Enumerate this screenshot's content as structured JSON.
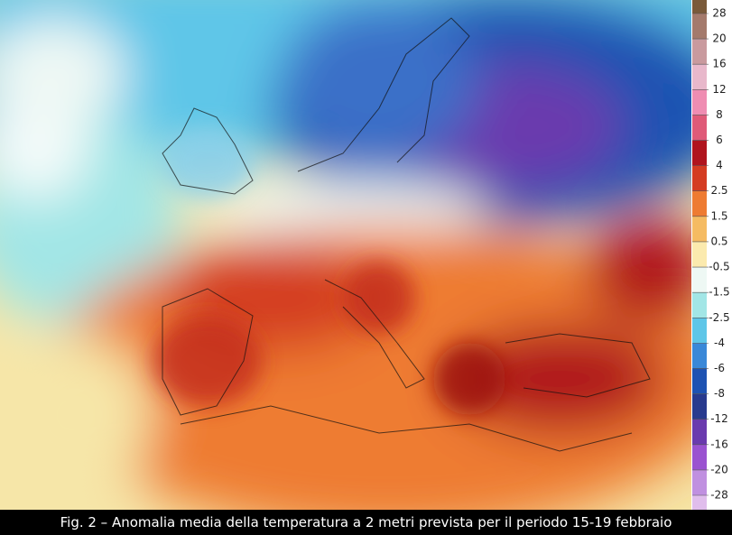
{
  "colorbar": {
    "ticks": [
      28,
      20,
      16,
      12,
      8,
      6,
      4,
      2.5,
      1.5,
      0.5,
      -0.5,
      -1.5,
      -2.5,
      -4,
      -6,
      -8,
      -12,
      -16,
      -20,
      -28
    ],
    "colors": [
      "#7a5a3a",
      "#a47a6c",
      "#c99a9e",
      "#e8b8cb",
      "#ef8db2",
      "#df5a78",
      "#b0141e",
      "#d43c22",
      "#ee7b32",
      "#f5bb62",
      "#fbeaae",
      "#eef8f4",
      "#a2e6e6",
      "#5ec6e8",
      "#3a88d8",
      "#1e52b2",
      "#283a8e",
      "#6a3aae",
      "#9a52d0",
      "#c090e0",
      "#e0bdec"
    ]
  },
  "caption": "Fig. 2 – Anomalia media della temperatura a 2 metri prevista per il periodo 15-19 febbraio"
}
